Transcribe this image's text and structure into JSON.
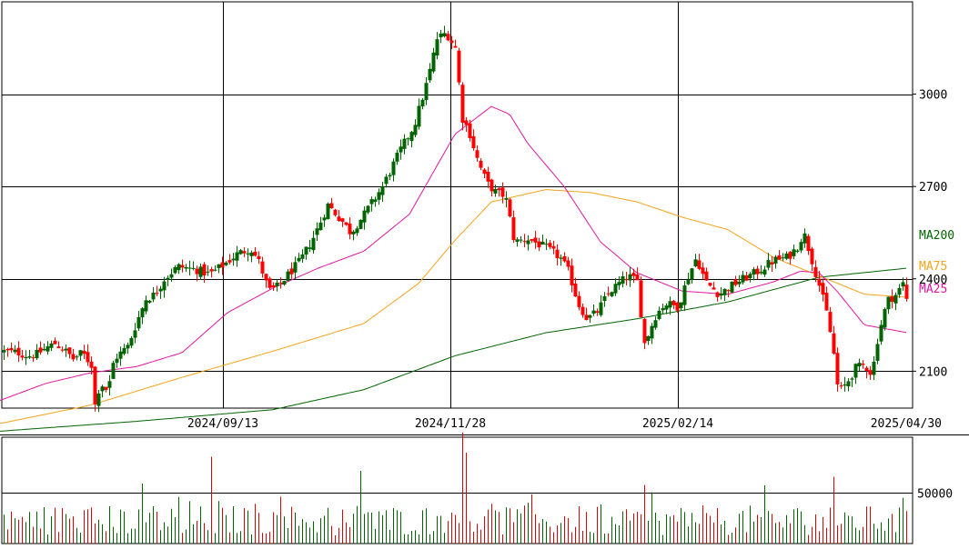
{
  "colors": {
    "up": "#006400",
    "down": "#ff0000",
    "ma25": "#e0179f",
    "ma75": "#f5a31a",
    "ma200": "#006400",
    "grid": "#000000",
    "volume_up": "#006400",
    "volume_down": "#e00000"
  },
  "chart_data": [
    {
      "type": "candlestick",
      "title": "",
      "ylim": [
        1980,
        3300
      ],
      "yticks": [
        3000,
        2700,
        2400,
        2100
      ],
      "ytick_labels": [
        "3000",
        "2700",
        "2400",
        "2100"
      ],
      "x_tick_labels": [
        "2024/09/13",
        "2024/11/28",
        "2025/02/14",
        "2025/04/30"
      ],
      "grid": true,
      "legend": "right",
      "series": [
        {
          "name": "MA200",
          "color": "#006400",
          "last_value": 2435
        },
        {
          "name": "MA75",
          "color": "#f5a31a",
          "last_value": 2340
        },
        {
          "name": "MA25",
          "color": "#e0179f",
          "last_value": 2225
        }
      ],
      "price_waypoints": [
        [
          0,
          2165
        ],
        [
          20,
          2160
        ],
        [
          30,
          2150
        ],
        [
          40,
          2155
        ],
        [
          50,
          2175
        ],
        [
          60,
          2190
        ],
        [
          70,
          2170
        ],
        [
          80,
          2140
        ],
        [
          90,
          2160
        ],
        [
          100,
          2120
        ],
        [
          104,
          1990
        ],
        [
          108,
          2040
        ],
        [
          113,
          2060
        ],
        [
          118,
          2030
        ],
        [
          125,
          2140
        ],
        [
          140,
          2180
        ],
        [
          150,
          2260
        ],
        [
          160,
          2335
        ],
        [
          170,
          2350
        ],
        [
          180,
          2400
        ],
        [
          195,
          2440
        ],
        [
          215,
          2430
        ],
        [
          230,
          2415
        ],
        [
          245,
          2445
        ],
        [
          260,
          2480
        ],
        [
          275,
          2500
        ],
        [
          285,
          2450
        ],
        [
          295,
          2360
        ],
        [
          305,
          2375
        ],
        [
          315,
          2410
        ],
        [
          330,
          2460
        ],
        [
          345,
          2540
        ],
        [
          360,
          2640
        ],
        [
          375,
          2590
        ],
        [
          385,
          2550
        ],
        [
          400,
          2610
        ],
        [
          420,
          2700
        ],
        [
          440,
          2820
        ],
        [
          455,
          2900
        ],
        [
          470,
          3050
        ],
        [
          480,
          3180
        ],
        [
          490,
          3200
        ],
        [
          500,
          3150
        ],
        [
          508,
          2920
        ],
        [
          515,
          2880
        ],
        [
          525,
          2780
        ],
        [
          535,
          2710
        ],
        [
          545,
          2680
        ],
        [
          555,
          2670
        ],
        [
          565,
          2520
        ],
        [
          580,
          2530
        ],
        [
          600,
          2500
        ],
        [
          615,
          2470
        ],
        [
          625,
          2420
        ],
        [
          635,
          2320
        ],
        [
          645,
          2270
        ],
        [
          655,
          2290
        ],
        [
          670,
          2360
        ],
        [
          690,
          2410
        ],
        [
          700,
          2390
        ],
        [
          708,
          2190
        ],
        [
          720,
          2280
        ],
        [
          730,
          2320
        ],
        [
          745,
          2310
        ],
        [
          755,
          2400
        ],
        [
          765,
          2470
        ],
        [
          775,
          2390
        ],
        [
          790,
          2350
        ],
        [
          810,
          2390
        ],
        [
          830,
          2420
        ],
        [
          850,
          2460
        ],
        [
          865,
          2470
        ],
        [
          875,
          2500
        ],
        [
          883,
          2550
        ],
        [
          890,
          2480
        ],
        [
          900,
          2380
        ],
        [
          908,
          2290
        ],
        [
          915,
          2180
        ],
        [
          921,
          2030
        ],
        [
          930,
          2060
        ],
        [
          940,
          2110
        ],
        [
          950,
          2120
        ],
        [
          958,
          2090
        ],
        [
          965,
          2220
        ],
        [
          975,
          2330
        ],
        [
          985,
          2350
        ],
        [
          993,
          2390
        ],
        [
          998,
          2300
        ]
      ],
      "ma200_waypoints": [
        [
          0,
          1905
        ],
        [
          150,
          1937
        ],
        [
          300,
          1975
        ],
        [
          400,
          2040
        ],
        [
          500,
          2150
        ],
        [
          600,
          2225
        ],
        [
          700,
          2270
        ],
        [
          800,
          2325
        ],
        [
          900,
          2405
        ],
        [
          998,
          2435
        ]
      ],
      "ma75_waypoints": [
        [
          0,
          1930
        ],
        [
          100,
          1990
        ],
        [
          200,
          2080
        ],
        [
          300,
          2165
        ],
        [
          400,
          2255
        ],
        [
          460,
          2385
        ],
        [
          500,
          2525
        ],
        [
          540,
          2650
        ],
        [
          600,
          2690
        ],
        [
          650,
          2680
        ],
        [
          700,
          2650
        ],
        [
          750,
          2600
        ],
        [
          800,
          2560
        ],
        [
          850,
          2470
        ],
        [
          900,
          2410
        ],
        [
          950,
          2350
        ],
        [
          998,
          2340
        ]
      ],
      "ma25_waypoints": [
        [
          0,
          2005
        ],
        [
          50,
          2060
        ],
        [
          100,
          2095
        ],
        [
          150,
          2115
        ],
        [
          200,
          2160
        ],
        [
          250,
          2290
        ],
        [
          300,
          2370
        ],
        [
          350,
          2435
        ],
        [
          400,
          2490
        ],
        [
          450,
          2610
        ],
        [
          500,
          2870
        ],
        [
          540,
          2960
        ],
        [
          560,
          2935
        ],
        [
          580,
          2840
        ],
        [
          620,
          2700
        ],
        [
          660,
          2520
        ],
        [
          700,
          2420
        ],
        [
          750,
          2360
        ],
        [
          800,
          2350
        ],
        [
          850,
          2390
        ],
        [
          880,
          2425
        ],
        [
          900,
          2420
        ],
        [
          920,
          2360
        ],
        [
          950,
          2250
        ],
        [
          998,
          2225
        ]
      ]
    },
    {
      "type": "bar",
      "title": "",
      "ylim": [
        0,
        100000
      ],
      "yticks": [
        50000
      ],
      "ytick_labels": [
        "50000"
      ],
      "peak_bars": [
        {
          "x": 232,
          "value": 86000
        },
        {
          "x": 395,
          "value": 72000
        },
        {
          "x": 478,
          "value": 88000
        },
        {
          "x": 486,
          "value": 82000
        },
        {
          "x": 507,
          "value": 110000
        },
        {
          "x": 513,
          "value": 90000
        },
        {
          "x": 708,
          "value": 58000
        },
        {
          "x": 915,
          "value": 66000
        }
      ]
    }
  ]
}
